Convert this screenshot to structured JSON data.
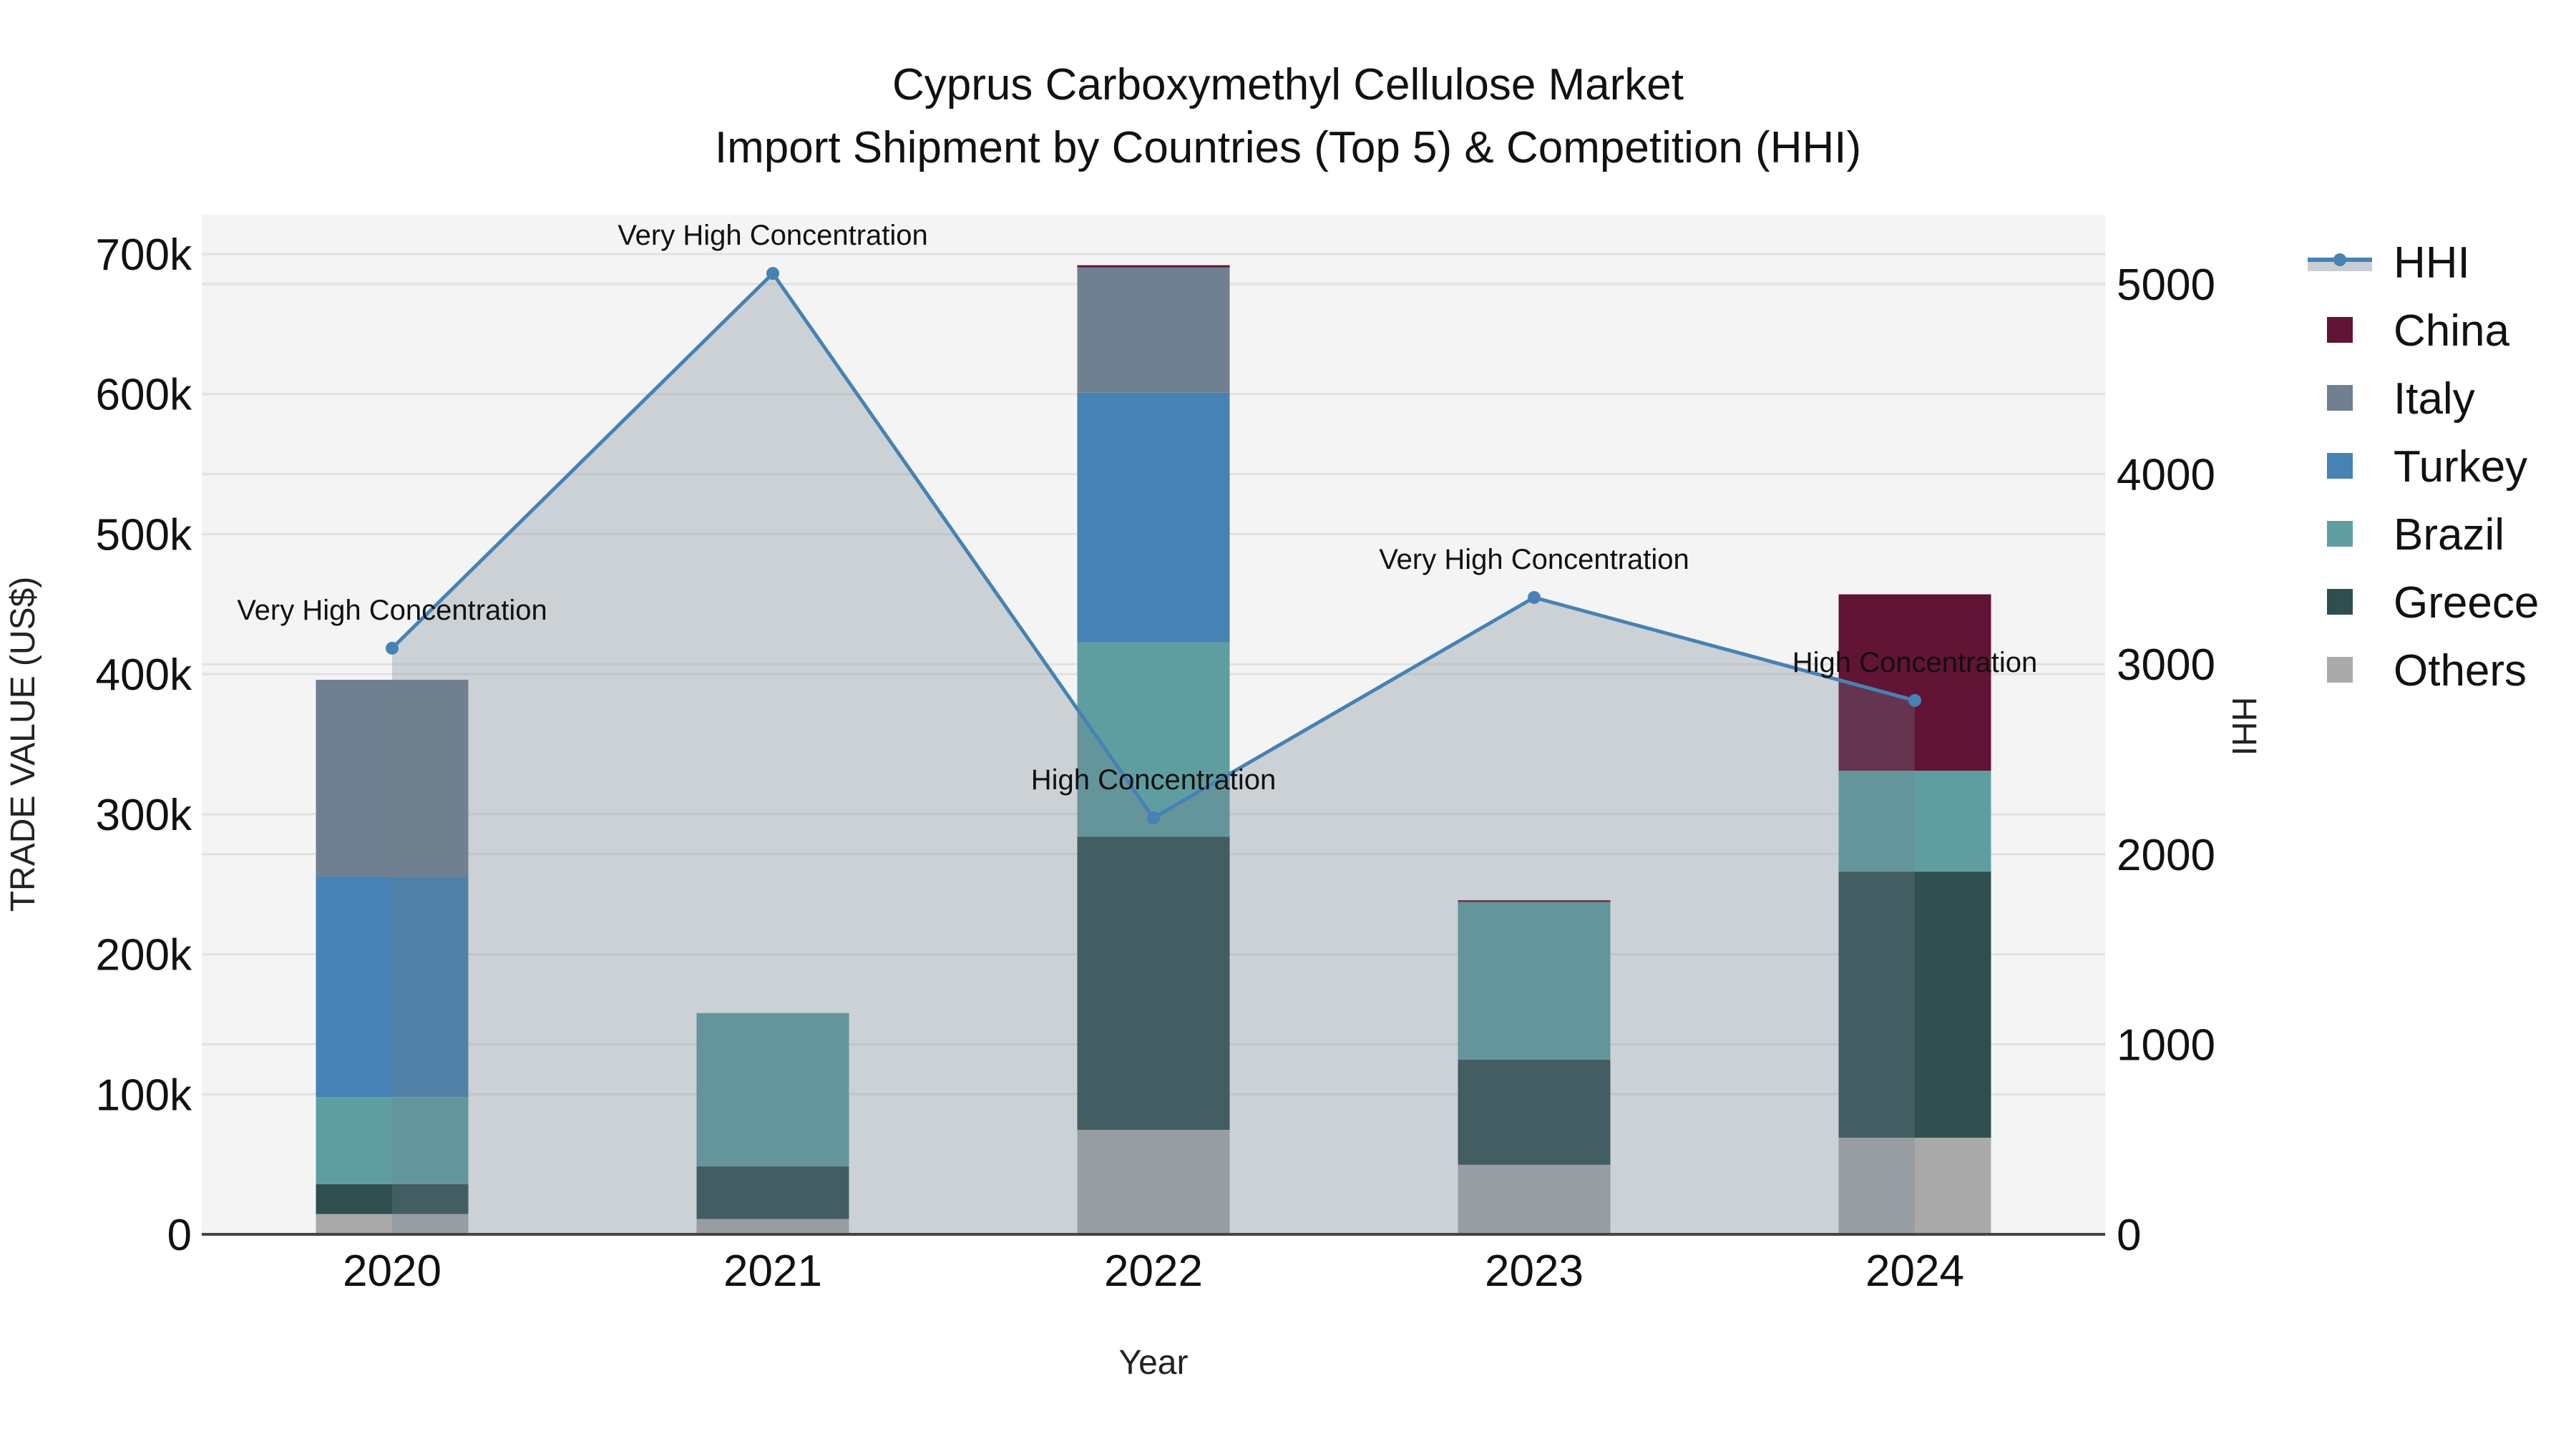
{
  "title": {
    "line1": "Cyprus Carboxymethyl Cellulose Market",
    "line2": "Import Shipment by Countries (Top 5) & Competition (HHI)"
  },
  "axes": {
    "x_title": "Year",
    "y_left_title": "TRADE VALUE (US$)",
    "y_right_title": "HHI",
    "y_left_ticks": [
      "0",
      "100k",
      "200k",
      "300k",
      "400k",
      "500k",
      "600k",
      "700k"
    ],
    "y_right_ticks": [
      "0",
      "1000",
      "2000",
      "3000",
      "4000",
      "5000"
    ]
  },
  "legend": {
    "items": [
      {
        "label": "HHI",
        "color": "#4682B4",
        "kind": "line"
      },
      {
        "label": "China",
        "color": "#611434",
        "kind": "box"
      },
      {
        "label": "Italy",
        "color": "#708090",
        "kind": "box"
      },
      {
        "label": "Turkey",
        "color": "#4682B4",
        "kind": "box"
      },
      {
        "label": "Brazil",
        "color": "#5F9EA0",
        "kind": "box"
      },
      {
        "label": "Greece",
        "color": "#2F4F4F",
        "kind": "box"
      },
      {
        "label": "Others",
        "color": "#A9A9A9",
        "kind": "box"
      }
    ]
  },
  "colors": {
    "plot_bg": "#f4f4f4",
    "grid": "#e2e2e2",
    "hhi_line": "#4682B4",
    "hhi_fill": "rgba(112,128,144,0.30)",
    "axis_line": "#444444"
  },
  "chart_data": {
    "type": "bar",
    "title": "Cyprus Carboxymethyl Cellulose Market — Import Shipment by Countries (Top 5) & Competition (HHI)",
    "xlabel": "Year",
    "ylabel": "TRADE VALUE (US$)",
    "y2label": "HHI",
    "barmode": "stack",
    "categories": [
      "2020",
      "2021",
      "2022",
      "2023",
      "2024"
    ],
    "ylim": [
      0,
      730000
    ],
    "y2lim": [
      0,
      5370
    ],
    "grid": true,
    "legend_position": "right",
    "series": [
      {
        "name": "Others",
        "color": "#A9A9A9",
        "values": [
          14500,
          11000,
          74600,
          49700,
          69000
        ]
      },
      {
        "name": "Greece",
        "color": "#2F4F4F",
        "values": [
          21300,
          37500,
          209400,
          75100,
          190000
        ]
      },
      {
        "name": "Brazil",
        "color": "#5F9EA0",
        "values": [
          62200,
          109500,
          138600,
          112500,
          72000
        ]
      },
      {
        "name": "Turkey",
        "color": "#4682B4",
        "values": [
          157500,
          0,
          178400,
          0,
          0
        ]
      },
      {
        "name": "Italy",
        "color": "#708090",
        "values": [
          140500,
          0,
          89500,
          0,
          0
        ]
      },
      {
        "name": "China",
        "color": "#611434",
        "values": [
          0,
          0,
          1500,
          1300,
          126000
        ]
      }
    ],
    "line_series": {
      "name": "HHI",
      "axis": "y2",
      "color": "#4682B4",
      "fill": "tozeroy",
      "values": [
        3084,
        5056,
        2191,
        3351,
        2809
      ],
      "annotations": [
        "Very High Concentration",
        "Very High Concentration",
        "High Concentration",
        "Very High Concentration",
        "High Concentration"
      ]
    }
  }
}
